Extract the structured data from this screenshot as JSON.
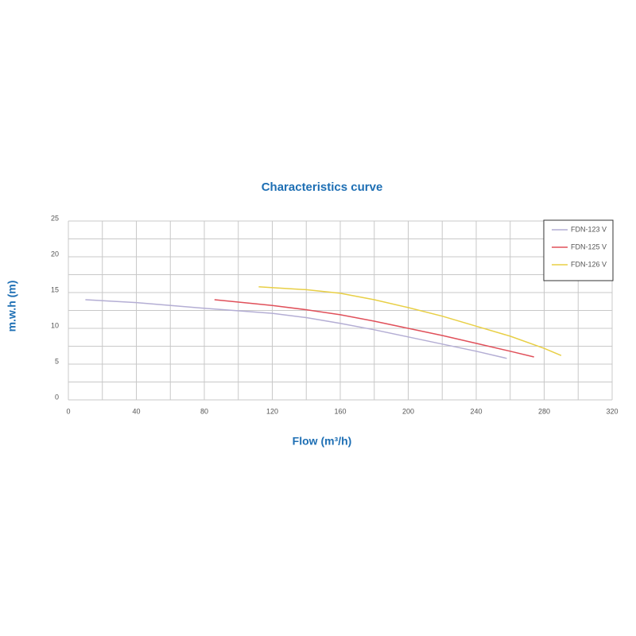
{
  "chart_data": {
    "type": "line",
    "title": "Characteristics curve",
    "x_label": "Flow (m³/h)",
    "y_label": "m.w.h (m)",
    "xlim": [
      0,
      320
    ],
    "ylim": [
      0,
      25
    ],
    "xticks": [
      0,
      40,
      80,
      120,
      160,
      200,
      240,
      280,
      320
    ],
    "yticks": [
      0,
      5,
      10,
      15,
      20,
      25
    ],
    "grid": true,
    "legend": "top-right",
    "series": [
      {
        "name": "FDN-123 V",
        "color": "#b4aed4",
        "x": [
          10,
          40,
          80,
          120,
          140,
          160,
          180,
          200,
          220,
          240,
          258
        ],
        "values": [
          14,
          13.6,
          12.8,
          12.1,
          11.5,
          10.7,
          9.8,
          8.8,
          7.8,
          6.8,
          5.8
        ]
      },
      {
        "name": "FDN-125 V",
        "color": "#e0505a",
        "x": [
          86,
          120,
          140,
          160,
          180,
          200,
          220,
          240,
          260,
          274
        ],
        "values": [
          14,
          13.2,
          12.6,
          11.9,
          11.0,
          10.0,
          9.0,
          7.9,
          6.8,
          6.0
        ]
      },
      {
        "name": "FDN-126 V",
        "color": "#e8cf45",
        "x": [
          112,
          140,
          160,
          180,
          200,
          220,
          240,
          260,
          280,
          290
        ],
        "values": [
          15.8,
          15.4,
          14.9,
          14.0,
          12.9,
          11.7,
          10.3,
          8.9,
          7.2,
          6.2
        ]
      }
    ]
  }
}
